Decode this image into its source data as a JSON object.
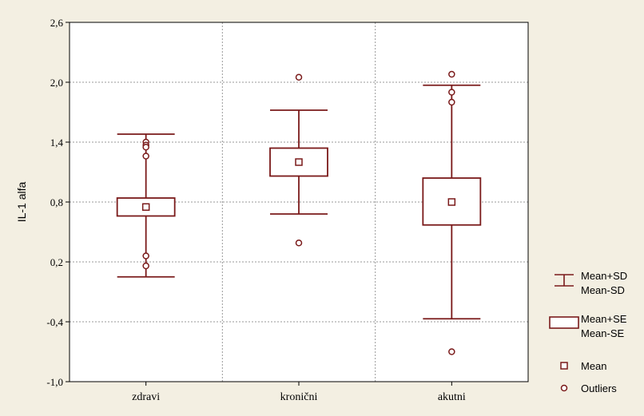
{
  "chart_data": {
    "type": "box",
    "ylabel": "IL-1 alfa",
    "xlabel": "",
    "ylim": [
      -1.0,
      2.6
    ],
    "yticks": [
      -1.0,
      -0.4,
      0.2,
      0.8,
      1.4,
      2.0,
      2.6
    ],
    "ytick_labels": [
      "-1,0",
      "-0,4",
      "0,2",
      "0,8",
      "1,4",
      "2,0",
      "2,6"
    ],
    "grid": true,
    "legend_position": "bottom-right",
    "categories": [
      "zdravi",
      "kronični",
      "akutni"
    ],
    "groups": [
      {
        "category": "zdravi",
        "mean": 0.75,
        "se_low": 0.66,
        "se_high": 0.84,
        "sd_low": 0.05,
        "sd_high": 1.48,
        "outliers": [
          1.4,
          1.37,
          1.35,
          1.26,
          0.26,
          0.16
        ]
      },
      {
        "category": "kronični",
        "mean": 1.2,
        "se_low": 1.06,
        "se_high": 1.34,
        "sd_low": 0.68,
        "sd_high": 1.72,
        "outliers": [
          2.05,
          0.39
        ]
      },
      {
        "category": "akutni",
        "mean": 0.8,
        "se_low": 0.57,
        "se_high": 1.04,
        "sd_low": -0.37,
        "sd_high": 1.97,
        "outliers": [
          2.08,
          1.9,
          1.8,
          -0.7
        ]
      }
    ],
    "legend": [
      {
        "symbol": "whisker",
        "label1": "Mean+SD",
        "label2": "Mean-SD"
      },
      {
        "symbol": "box",
        "label1": "Mean+SE",
        "label2": "Mean-SE"
      },
      {
        "symbol": "square",
        "label1": "Mean",
        "label2": ""
      },
      {
        "symbol": "circle",
        "label1": "Outliers",
        "label2": ""
      }
    ]
  },
  "colors": {
    "background": "#f3efe2",
    "plot_background": "#ffffff",
    "series": "#7a1a1a",
    "grid": "#9a9a9a",
    "axis": "#000000"
  }
}
